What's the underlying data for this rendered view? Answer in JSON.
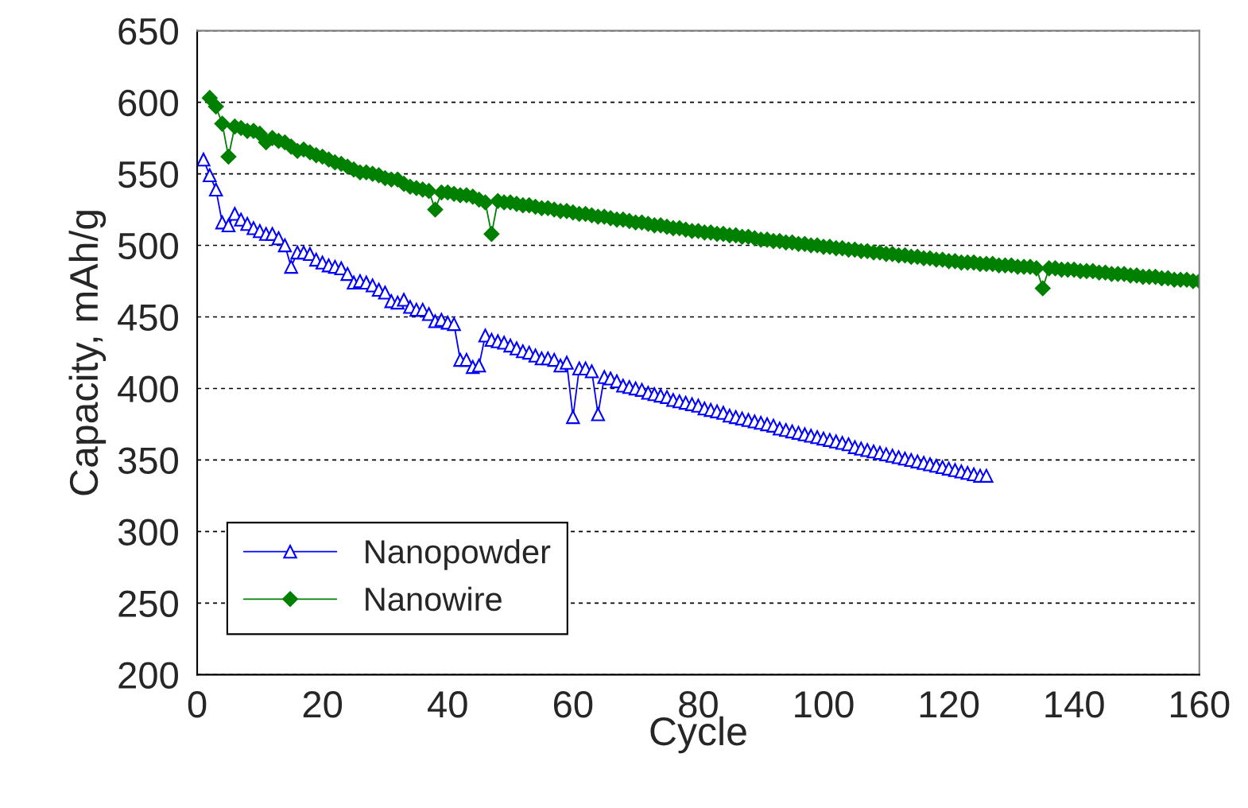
{
  "chart_data": {
    "type": "line",
    "xlabel": "Cycle",
    "ylabel": "Capacity, mAh/g",
    "xlim": [
      0,
      160
    ],
    "xticks": [
      0,
      20,
      40,
      60,
      80,
      100,
      120,
      140,
      160
    ],
    "ylim": [
      200,
      650
    ],
    "yticks": [
      200,
      250,
      300,
      350,
      400,
      450,
      500,
      550,
      600,
      650
    ],
    "grid": "y",
    "legend": "bottom left",
    "line_style": "solid",
    "series": [
      {
        "name": "Nanopowder",
        "color": "#0000ff",
        "marker": "triangle",
        "x": [
          1,
          2,
          3,
          4,
          5,
          6,
          7,
          8,
          9,
          10,
          11,
          12,
          13,
          14,
          15,
          16,
          17,
          18,
          19,
          20,
          21,
          22,
          23,
          24,
          25,
          26,
          27,
          28,
          29,
          30,
          31,
          32,
          33,
          34,
          35,
          36,
          37,
          38,
          39,
          40,
          41,
          42,
          43,
          44,
          45,
          46,
          47,
          48,
          49,
          50,
          51,
          52,
          53,
          54,
          55,
          56,
          57,
          58,
          59,
          60,
          61,
          62,
          63,
          64,
          65,
          66,
          67,
          68,
          69,
          70,
          71,
          72,
          73,
          74,
          75,
          76,
          77,
          78,
          79,
          80,
          81,
          82,
          83,
          84,
          85,
          86,
          87,
          88,
          89,
          90,
          91,
          92,
          93,
          94,
          95,
          96,
          97,
          98,
          99,
          100,
          101,
          102,
          103,
          104,
          105,
          106,
          107,
          108,
          109,
          110,
          111,
          112,
          113,
          114,
          115,
          116,
          117,
          118,
          119,
          120,
          121,
          122,
          123,
          124,
          125,
          126
        ],
        "values": [
          560,
          549,
          539,
          516,
          514,
          522,
          518,
          515,
          512,
          510,
          508,
          508,
          505,
          500,
          485,
          495,
          495,
          494,
          490,
          488,
          486,
          485,
          484,
          480,
          474,
          475,
          474,
          472,
          469,
          467,
          461,
          460,
          462,
          457,
          455,
          455,
          452,
          447,
          448,
          446,
          445,
          420,
          420,
          415,
          416,
          437,
          434,
          433,
          432,
          430,
          428,
          426,
          425,
          423,
          421,
          421,
          420,
          416,
          418,
          380,
          414,
          414,
          412,
          382,
          408,
          407,
          405,
          402,
          401,
          400,
          399,
          397,
          396,
          395,
          394,
          392,
          391,
          390,
          389,
          388,
          386,
          385,
          384,
          383,
          381,
          380,
          379,
          378,
          377,
          376,
          375,
          374,
          372,
          371,
          370,
          369,
          368,
          367,
          366,
          365,
          364,
          363,
          362,
          361,
          359,
          358,
          357,
          356,
          355,
          354,
          353,
          352,
          351,
          350,
          349,
          348,
          347,
          346,
          345,
          344,
          343,
          342,
          341,
          340,
          339,
          339
        ]
      },
      {
        "name": "Nanowire",
        "color": "#008000",
        "marker": "diamond",
        "x": [
          2,
          3,
          4,
          5,
          6,
          7,
          8,
          9,
          10,
          11,
          12,
          13,
          14,
          15,
          16,
          17,
          18,
          19,
          20,
          21,
          22,
          23,
          24,
          25,
          26,
          27,
          28,
          29,
          30,
          31,
          32,
          33,
          34,
          35,
          36,
          37,
          38,
          39,
          40,
          41,
          42,
          43,
          44,
          45,
          46,
          47,
          48,
          49,
          50,
          51,
          52,
          53,
          54,
          55,
          56,
          57,
          58,
          59,
          60,
          61,
          62,
          63,
          64,
          65,
          66,
          67,
          68,
          69,
          70,
          71,
          72,
          73,
          74,
          75,
          76,
          77,
          78,
          79,
          80,
          81,
          82,
          83,
          84,
          85,
          86,
          87,
          88,
          89,
          90,
          91,
          92,
          93,
          94,
          95,
          96,
          97,
          98,
          99,
          100,
          101,
          102,
          103,
          104,
          105,
          106,
          107,
          108,
          109,
          110,
          111,
          112,
          113,
          114,
          115,
          116,
          117,
          118,
          119,
          120,
          121,
          122,
          123,
          124,
          125,
          126,
          127,
          128,
          129,
          130,
          131,
          132,
          133,
          134,
          135,
          136,
          137,
          138,
          139,
          140,
          141,
          142,
          143,
          144,
          145,
          146,
          147,
          148,
          149,
          150,
          151,
          152,
          153,
          154,
          155,
          156,
          157,
          158,
          159,
          160
        ],
        "values": [
          603,
          597,
          585,
          562,
          583,
          582,
          580,
          580,
          578,
          572,
          575,
          573,
          572,
          569,
          566,
          567,
          565,
          563,
          562,
          560,
          558,
          557,
          555,
          553,
          551,
          551,
          550,
          549,
          547,
          546,
          546,
          543,
          541,
          540,
          539,
          538,
          525,
          537,
          537,
          536,
          535,
          535,
          534,
          532,
          530,
          508,
          531,
          530,
          530,
          529,
          528,
          528,
          527,
          526,
          526,
          525,
          524,
          524,
          523,
          522,
          522,
          521,
          520,
          520,
          519,
          518,
          518,
          517,
          516,
          516,
          515,
          514,
          514,
          513,
          512,
          512,
          511,
          510,
          510,
          509,
          509,
          508,
          508,
          507,
          507,
          506,
          506,
          505,
          504,
          504,
          503,
          503,
          502,
          502,
          501,
          501,
          500,
          500,
          499,
          499,
          498,
          498,
          497,
          497,
          496,
          496,
          495,
          495,
          494,
          494,
          493,
          493,
          492,
          492,
          491,
          491,
          490,
          490,
          489,
          489,
          488,
          488,
          488,
          487,
          487,
          487,
          486,
          486,
          486,
          485,
          485,
          485,
          484,
          470,
          484,
          484,
          483,
          483,
          483,
          482,
          482,
          482,
          481,
          481,
          480,
          480,
          480,
          479,
          479,
          478,
          478,
          478,
          477,
          477,
          476,
          476,
          476,
          475,
          475
        ]
      }
    ]
  }
}
